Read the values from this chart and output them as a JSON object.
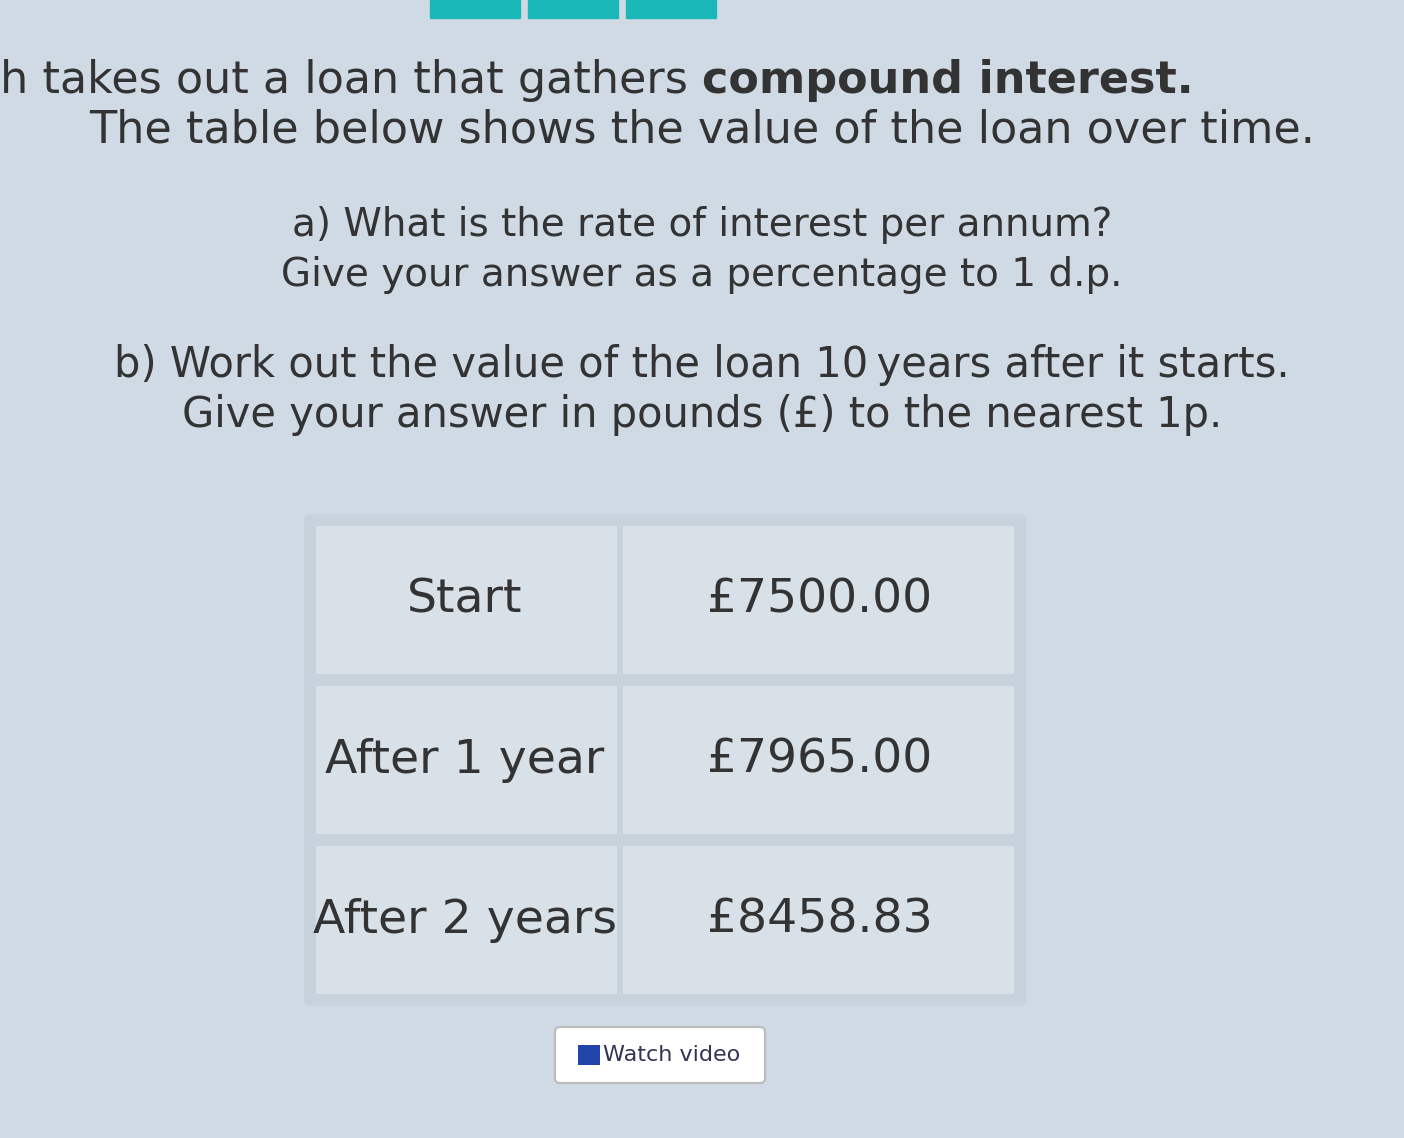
{
  "bg_top_color": "#c8d4e0",
  "bg_bottom_color": "#d8e2ec",
  "background_color": "#d0dae4",
  "title_line1_normal": "Joseph takes out a loan that gathers ",
  "title_line1_bold": "compound interest",
  "title_line1_end": ".",
  "title_line2": "The table below shows the value of the loan over time.",
  "question_a_line1": "a) What is the rate of interest per annum?",
  "question_a_line2": "Give your answer as a percentage to 1 d.p.",
  "question_b_line1": "b) Work out the value of the loan 10 years after it starts.",
  "question_b_line2": "Give your answer in pounds (£) to the nearest 1p.",
  "table_rows": [
    [
      "Start",
      "£7500.00"
    ],
    [
      "After 1 year",
      "£7965.00"
    ],
    [
      "After 2 years",
      "£8458.83"
    ]
  ],
  "table_outer_bg": "#c8d2dc",
  "table_cell_bg": "#d8e0e8",
  "text_color": "#333333",
  "top_bar_color": "#1ab8b8",
  "font_size_title": 32,
  "font_size_question_a": 28,
  "font_size_question_b": 30,
  "font_size_table": 34,
  "font_size_watch": 16,
  "watch_video_text": "Watch video",
  "watch_icon_color": "#2244aa"
}
